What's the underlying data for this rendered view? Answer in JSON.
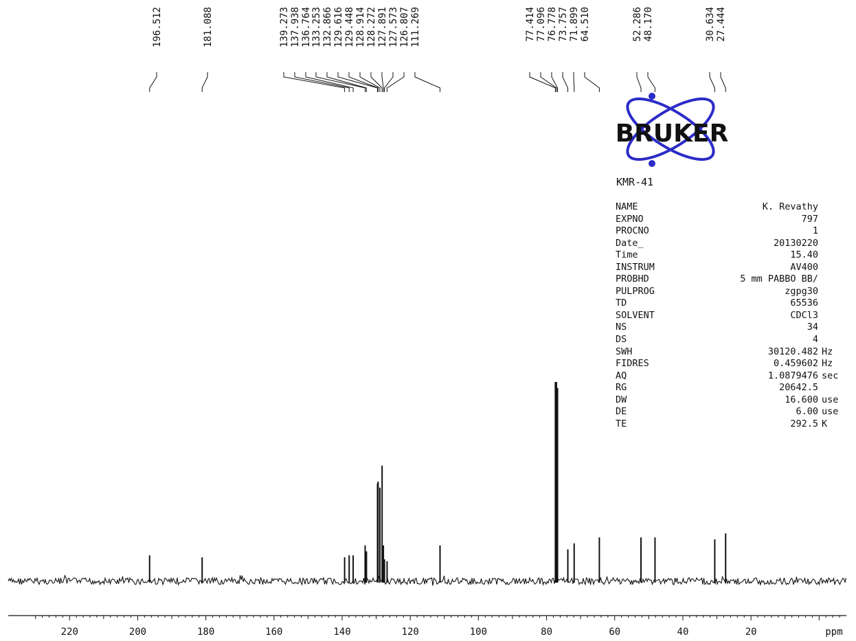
{
  "sample": {
    "name": "KMR-41"
  },
  "logo": {
    "text": "BRUKER",
    "color": "#2b2bc8",
    "text_color": "#111111"
  },
  "parameters": [
    {
      "name": "NAME",
      "value": "K. Revathy",
      "unit": ""
    },
    {
      "name": "EXPNO",
      "value": "797",
      "unit": ""
    },
    {
      "name": "PROCNO",
      "value": "1",
      "unit": ""
    },
    {
      "name": "Date_",
      "value": "20130220",
      "unit": ""
    },
    {
      "name": "Time",
      "value": "15.40",
      "unit": ""
    },
    {
      "name": "INSTRUM",
      "value": "AV400",
      "unit": ""
    },
    {
      "name": "PROBHD",
      "value": "5 mm PABBO BB/",
      "unit": ""
    },
    {
      "name": "PULPROG",
      "value": "zgpg30",
      "unit": ""
    },
    {
      "name": "TD",
      "value": "65536",
      "unit": ""
    },
    {
      "name": "SOLVENT",
      "value": "CDCl3",
      "unit": ""
    },
    {
      "name": "NS",
      "value": "34",
      "unit": ""
    },
    {
      "name": "DS",
      "value": "4",
      "unit": ""
    },
    {
      "name": "SWH",
      "value": "30120.482",
      "unit": "Hz"
    },
    {
      "name": "FIDRES",
      "value": "0.459602",
      "unit": "Hz"
    },
    {
      "name": "AQ",
      "value": "1.0879476",
      "unit": "sec"
    },
    {
      "name": "RG",
      "value": "20642.5",
      "unit": ""
    },
    {
      "name": "DW",
      "value": "16.600",
      "unit": "use"
    },
    {
      "name": "DE",
      "value": "6.00",
      "unit": "use"
    },
    {
      "name": "TE",
      "value": "292.5",
      "unit": "K"
    }
  ],
  "chart_data": {
    "type": "line",
    "xlabel": "ppm",
    "xlim": [
      238,
      -8
    ],
    "x_ticks": [
      220,
      200,
      180,
      160,
      140,
      120,
      100,
      80,
      60,
      40,
      20
    ],
    "peak_labels": [
      "196.512",
      "181.088",
      "139.273",
      "137.938",
      "136.764",
      "133.253",
      "132.866",
      "129.616",
      "129.448",
      "128.914",
      "128.272",
      "127.891",
      "127.573",
      "126.807",
      "111.269",
      "77.414",
      "77.096",
      "76.778",
      "73.757",
      "71.899",
      "64.510",
      "52.286",
      "48.170",
      "30.634",
      "27.444"
    ],
    "peaks": [
      {
        "ppm": 196.512,
        "intensity": 0.13
      },
      {
        "ppm": 181.088,
        "intensity": 0.12
      },
      {
        "ppm": 139.273,
        "intensity": 0.12
      },
      {
        "ppm": 137.938,
        "intensity": 0.13
      },
      {
        "ppm": 136.764,
        "intensity": 0.13
      },
      {
        "ppm": 133.253,
        "intensity": 0.18
      },
      {
        "ppm": 132.866,
        "intensity": 0.15
      },
      {
        "ppm": 129.616,
        "intensity": 0.49
      },
      {
        "ppm": 129.448,
        "intensity": 0.5
      },
      {
        "ppm": 128.914,
        "intensity": 0.47
      },
      {
        "ppm": 128.272,
        "intensity": 0.58
      },
      {
        "ppm": 127.891,
        "intensity": 0.18
      },
      {
        "ppm": 127.573,
        "intensity": 0.11
      },
      {
        "ppm": 126.807,
        "intensity": 0.1
      },
      {
        "ppm": 111.269,
        "intensity": 0.18
      },
      {
        "ppm": 77.414,
        "intensity": 1.0
      },
      {
        "ppm": 77.096,
        "intensity": 1.0
      },
      {
        "ppm": 76.778,
        "intensity": 0.97
      },
      {
        "ppm": 73.757,
        "intensity": 0.16
      },
      {
        "ppm": 71.899,
        "intensity": 0.19
      },
      {
        "ppm": 64.51,
        "intensity": 0.22
      },
      {
        "ppm": 52.286,
        "intensity": 0.22
      },
      {
        "ppm": 48.17,
        "intensity": 0.22
      },
      {
        "ppm": 30.634,
        "intensity": 0.21
      },
      {
        "ppm": 27.444,
        "intensity": 0.24
      }
    ],
    "grid": false,
    "line_color": "#111111"
  }
}
